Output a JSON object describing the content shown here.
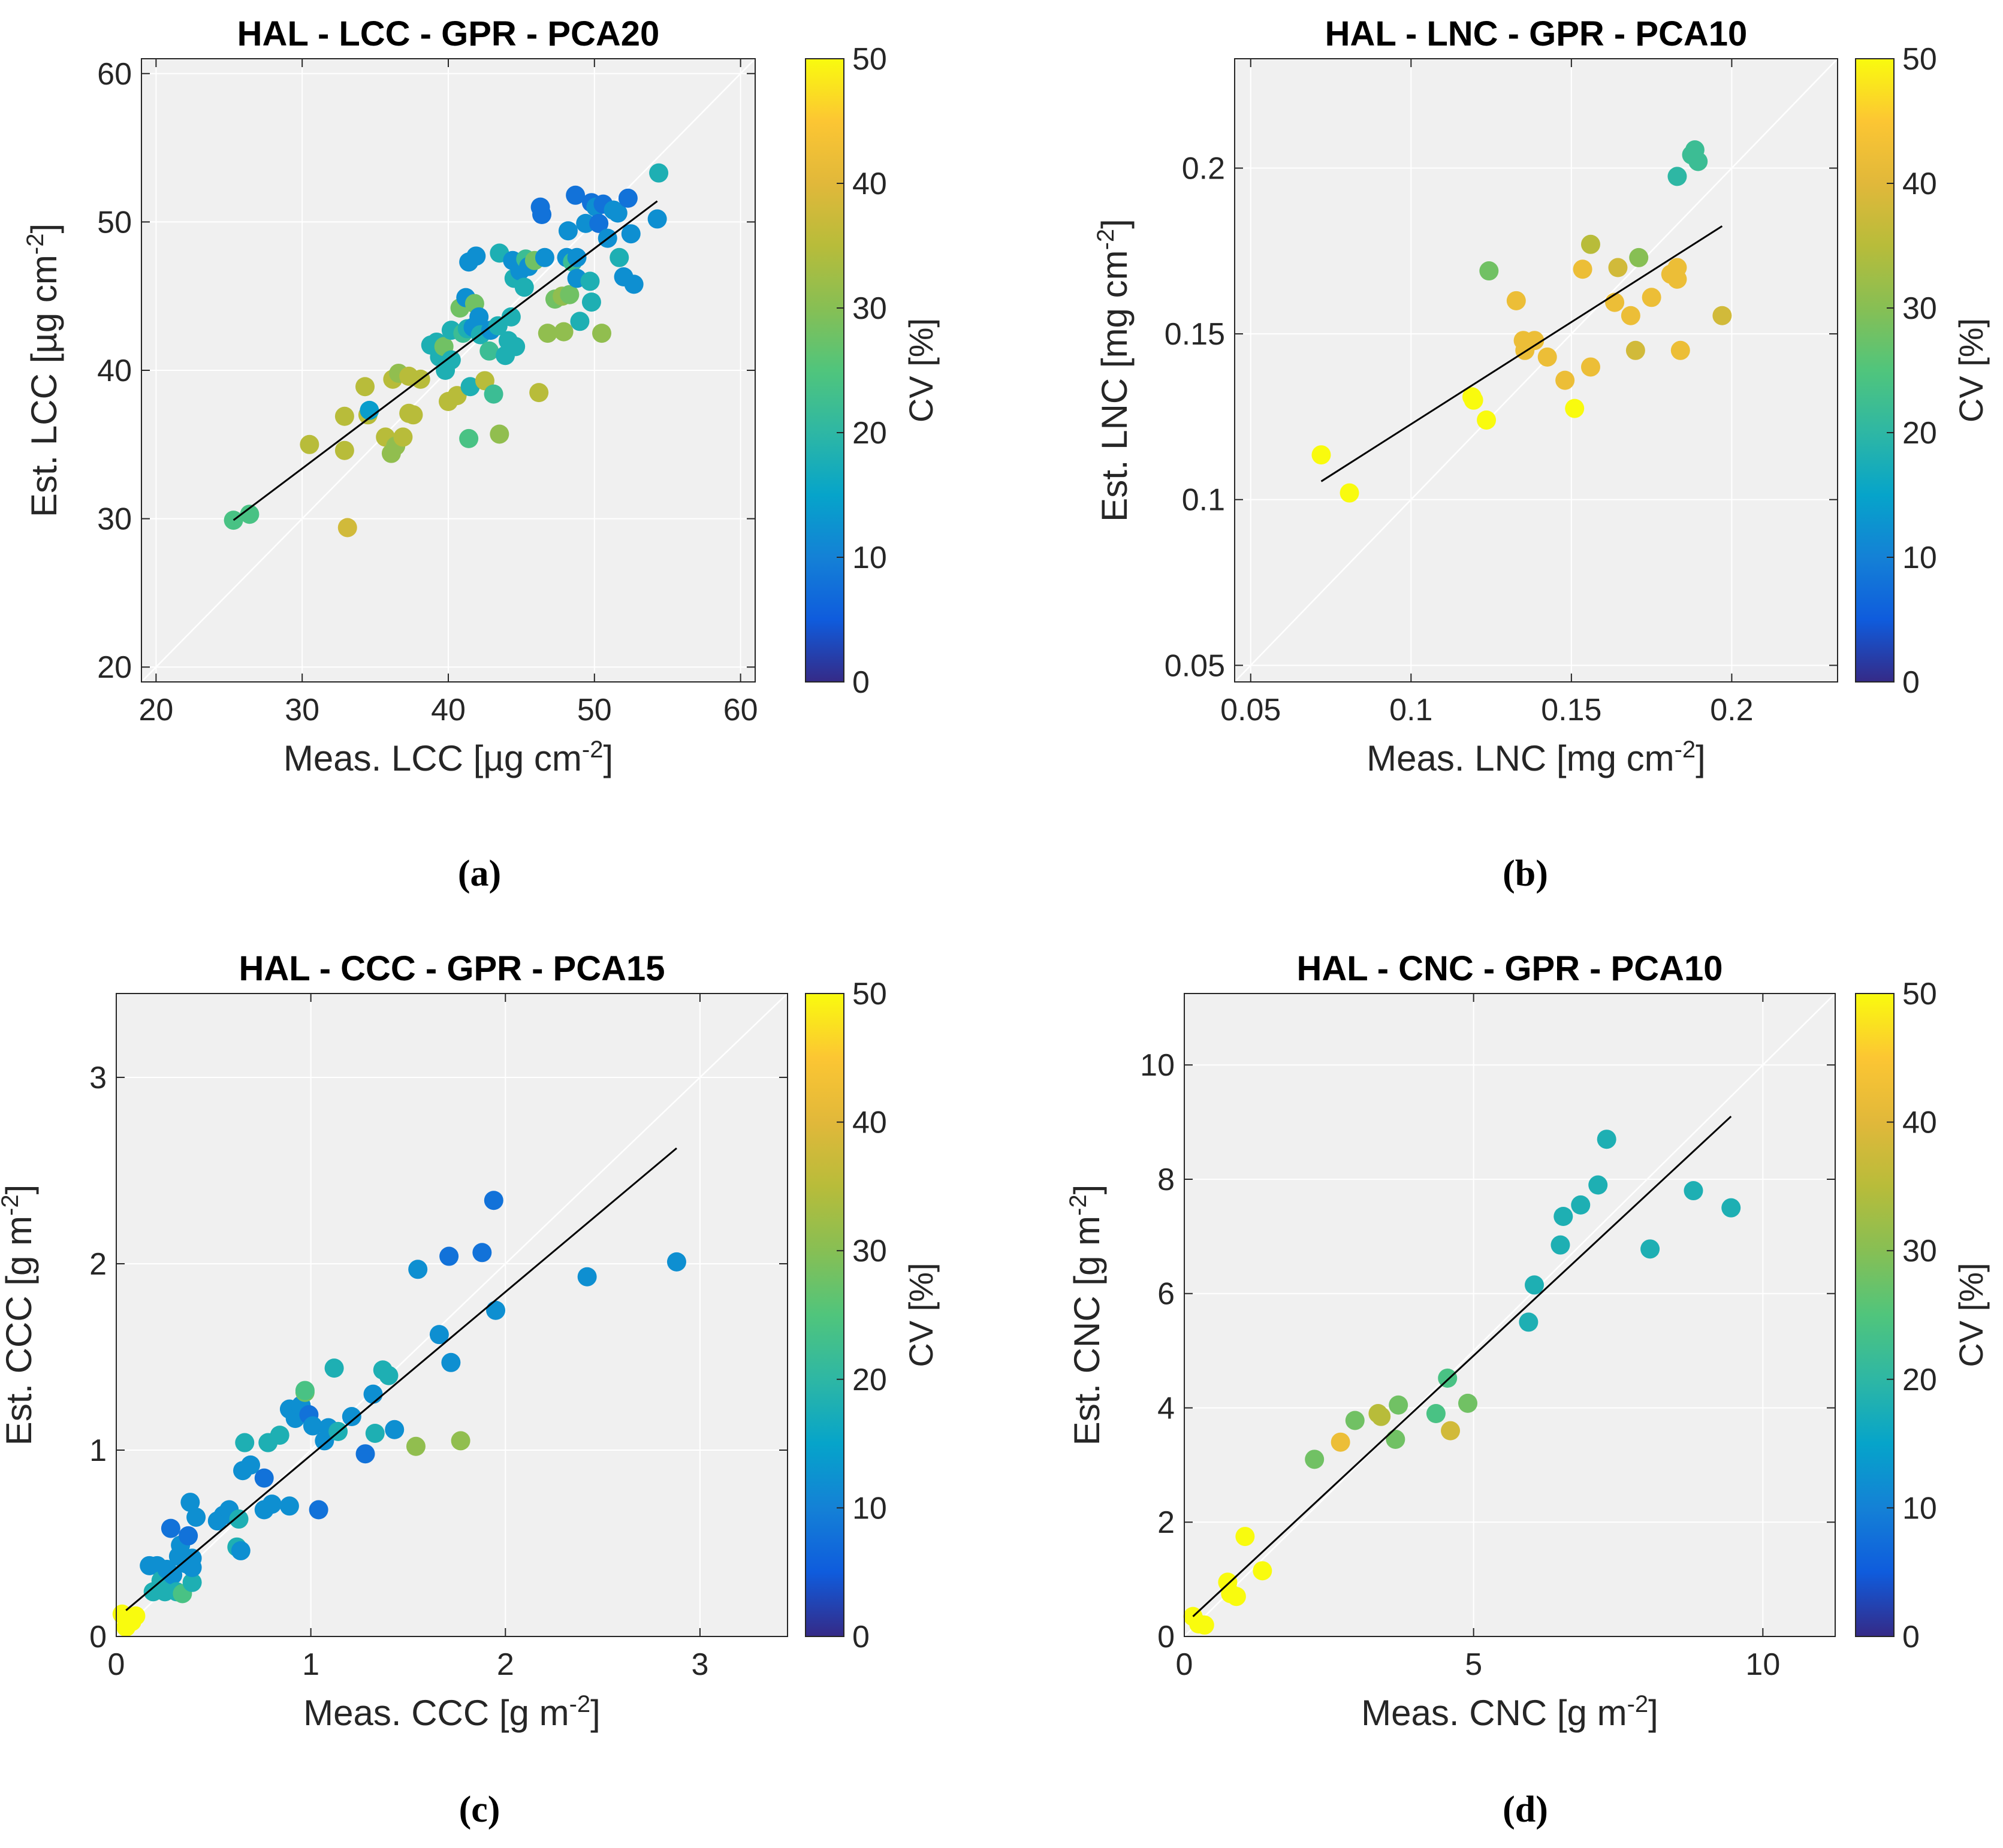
{
  "figure": {
    "captions": [
      "(a)",
      "(b)",
      "(c)",
      "(d)"
    ]
  },
  "colorbar": {
    "label": "CV [%]",
    "min": 0,
    "max": 50,
    "ticks": [
      0,
      10,
      20,
      30,
      40,
      50
    ]
  },
  "chart_data": [
    {
      "type": "scatter",
      "title": "HAL - LCC - GPR - PCA20",
      "xlabel": "Meas. LCC [µg cm",
      "xlabel_sup": "-2",
      "xlabel_end": "]",
      "ylabel": "Est. LCC [µg cm",
      "ylabel_sup": "-2",
      "ylabel_end": "]",
      "xlim": [
        19,
        61
      ],
      "ylim": [
        19,
        61
      ],
      "xticks": [
        20,
        30,
        40,
        50,
        60
      ],
      "yticks": [
        20,
        30,
        40,
        50,
        60
      ],
      "xtick_labels": [
        "20",
        "30",
        "40",
        "50",
        "60"
      ],
      "ytick_labels": [
        "20",
        "30",
        "40",
        "50",
        "60"
      ],
      "grid": true,
      "fit_line": [
        [
          25.3,
          29.9
        ],
        [
          54.3,
          51.4
        ]
      ],
      "points": [
        [
          25.3,
          29.9,
          24
        ],
        [
          26.4,
          30.3,
          24
        ],
        [
          30.5,
          35.0,
          35
        ],
        [
          32.9,
          34.6,
          35
        ],
        [
          32.9,
          36.9,
          35
        ],
        [
          33.1,
          29.4,
          38
        ],
        [
          34.3,
          38.9,
          35
        ],
        [
          34.5,
          37.0,
          35
        ],
        [
          34.6,
          37.3,
          14
        ],
        [
          35.7,
          35.5,
          35
        ],
        [
          36.1,
          34.4,
          31
        ],
        [
          36.2,
          39.4,
          35
        ],
        [
          36.4,
          34.9,
          31
        ],
        [
          36.6,
          39.8,
          31
        ],
        [
          36.9,
          35.5,
          35
        ],
        [
          37.3,
          39.6,
          35
        ],
        [
          37.3,
          37.1,
          35
        ],
        [
          37.6,
          37.0,
          35
        ],
        [
          38.1,
          39.4,
          35
        ],
        [
          38.8,
          41.7,
          18
        ],
        [
          39.2,
          41.9,
          18
        ],
        [
          39.4,
          40.9,
          18
        ],
        [
          39.7,
          41.6,
          28
        ],
        [
          39.8,
          40.0,
          18
        ],
        [
          40.0,
          37.9,
          35
        ],
        [
          40.2,
          42.7,
          18
        ],
        [
          40.2,
          40.7,
          18
        ],
        [
          40.6,
          38.3,
          35
        ],
        [
          40.8,
          44.2,
          28
        ],
        [
          41.0,
          42.5,
          22
        ],
        [
          41.2,
          44.9,
          12
        ],
        [
          41.3,
          42.8,
          18
        ],
        [
          41.4,
          47.3,
          12
        ],
        [
          41.4,
          35.4,
          24
        ],
        [
          41.5,
          38.9,
          18
        ],
        [
          41.7,
          42.9,
          12
        ],
        [
          41.8,
          44.5,
          28
        ],
        [
          41.9,
          47.7,
          12
        ],
        [
          42.1,
          43.6,
          12
        ],
        [
          42.2,
          42.4,
          18
        ],
        [
          42.5,
          39.3,
          35
        ],
        [
          42.8,
          41.3,
          22
        ],
        [
          42.9,
          42.7,
          12
        ],
        [
          43.1,
          38.4,
          22
        ],
        [
          43.4,
          43.0,
          18
        ],
        [
          43.5,
          35.7,
          31
        ],
        [
          43.5,
          47.9,
          18
        ],
        [
          43.9,
          41.0,
          18
        ],
        [
          44.1,
          42.0,
          18
        ],
        [
          44.3,
          43.6,
          18
        ],
        [
          44.4,
          47.4,
          12
        ],
        [
          44.5,
          46.2,
          18
        ],
        [
          44.6,
          41.6,
          18
        ],
        [
          44.9,
          46.7,
          12
        ],
        [
          45.2,
          45.6,
          18
        ],
        [
          45.3,
          47.5,
          22
        ],
        [
          45.5,
          47.0,
          12
        ],
        [
          45.9,
          47.4,
          28
        ],
        [
          46.2,
          38.5,
          35
        ],
        [
          46.3,
          51.0,
          8
        ],
        [
          46.4,
          50.5,
          8
        ],
        [
          46.6,
          47.6,
          12
        ],
        [
          46.8,
          42.5,
          31
        ],
        [
          47.3,
          44.8,
          28
        ],
        [
          47.8,
          45.0,
          31
        ],
        [
          47.9,
          42.6,
          31
        ],
        [
          48.1,
          47.6,
          12
        ],
        [
          48.2,
          49.4,
          12
        ],
        [
          48.3,
          45.1,
          28
        ],
        [
          48.5,
          47.3,
          22
        ],
        [
          48.7,
          51.8,
          8
        ],
        [
          48.8,
          46.2,
          12
        ],
        [
          48.8,
          47.6,
          12
        ],
        [
          49.0,
          43.3,
          18
        ],
        [
          49.4,
          49.9,
          12
        ],
        [
          49.7,
          46.0,
          18
        ],
        [
          49.8,
          44.6,
          18
        ],
        [
          49.8,
          51.3,
          8
        ],
        [
          50.1,
          51.0,
          12
        ],
        [
          50.3,
          49.9,
          8
        ],
        [
          50.5,
          42.5,
          31
        ],
        [
          50.6,
          51.2,
          8
        ],
        [
          50.9,
          48.9,
          12
        ],
        [
          51.3,
          50.8,
          12
        ],
        [
          51.6,
          50.6,
          12
        ],
        [
          51.7,
          47.6,
          18
        ],
        [
          52.0,
          46.3,
          12
        ],
        [
          52.3,
          51.6,
          8
        ],
        [
          52.5,
          49.2,
          12
        ],
        [
          52.7,
          45.8,
          12
        ],
        [
          54.3,
          50.2,
          12
        ],
        [
          54.4,
          53.3,
          18
        ]
      ]
    },
    {
      "type": "scatter",
      "title": "HAL - LNC - GPR - PCA10",
      "xlabel": "Meas. LNC [mg cm",
      "xlabel_sup": "-2",
      "xlabel_end": "]",
      "ylabel": "Est. LNC [mg cm",
      "ylabel_sup": "-2",
      "ylabel_end": "]",
      "xlim": [
        0.045,
        0.233
      ],
      "ylim": [
        0.045,
        0.233
      ],
      "xticks": [
        0.05,
        0.1,
        0.15,
        0.2
      ],
      "yticks": [
        0.05,
        0.1,
        0.15,
        0.2
      ],
      "xtick_labels": [
        "0.05",
        "0.1",
        "0.15",
        "0.2"
      ],
      "ytick_labels": [
        "0.05",
        "0.1",
        "0.15",
        "0.2"
      ],
      "grid": true,
      "fit_line": [
        [
          0.072,
          0.1055
        ],
        [
          0.197,
          0.1825
        ]
      ],
      "points": [
        [
          0.072,
          0.1135,
          50
        ],
        [
          0.0808,
          0.102,
          50
        ],
        [
          0.119,
          0.131,
          50
        ],
        [
          0.1195,
          0.13,
          50
        ],
        [
          0.1235,
          0.124,
          50
        ],
        [
          0.1243,
          0.169,
          28
        ],
        [
          0.1328,
          0.16,
          42
        ],
        [
          0.135,
          0.148,
          42
        ],
        [
          0.1355,
          0.145,
          42
        ],
        [
          0.1385,
          0.148,
          42
        ],
        [
          0.1425,
          0.143,
          42
        ],
        [
          0.148,
          0.136,
          42
        ],
        [
          0.151,
          0.1275,
          50
        ],
        [
          0.1535,
          0.1695,
          42
        ],
        [
          0.156,
          0.14,
          42
        ],
        [
          0.156,
          0.177,
          35
        ],
        [
          0.1635,
          0.1595,
          42
        ],
        [
          0.1645,
          0.17,
          38
        ],
        [
          0.1685,
          0.1555,
          42
        ],
        [
          0.17,
          0.145,
          38
        ],
        [
          0.171,
          0.173,
          30
        ],
        [
          0.175,
          0.161,
          42
        ],
        [
          0.181,
          0.168,
          42
        ],
        [
          0.183,
          0.17,
          42
        ],
        [
          0.183,
          0.1665,
          42
        ],
        [
          0.184,
          0.145,
          42
        ],
        [
          0.183,
          0.1975,
          20
        ],
        [
          0.1875,
          0.204,
          22
        ],
        [
          0.1885,
          0.2055,
          22
        ],
        [
          0.1895,
          0.202,
          22
        ],
        [
          0.197,
          0.1555,
          38
        ]
      ]
    },
    {
      "type": "scatter",
      "title": "HAL - CCC - GPR - PCA15",
      "xlabel": "Meas. CCC [g m",
      "xlabel_sup": "-2",
      "xlabel_end": "]",
      "ylabel": "Est. CCC [g m",
      "ylabel_sup": "-2",
      "ylabel_end": "]",
      "xlim": [
        0,
        3.45
      ],
      "ylim": [
        0,
        3.45
      ],
      "xticks": [
        0,
        1,
        2,
        3
      ],
      "yticks": [
        0,
        1,
        2,
        3
      ],
      "xtick_labels": [
        "0",
        "1",
        "2",
        "3"
      ],
      "ytick_labels": [
        "0",
        "1",
        "2",
        "3"
      ],
      "grid": true,
      "fit_line": [
        [
          0.05,
          0.14
        ],
        [
          2.88,
          2.62
        ]
      ],
      "points": [
        [
          0.03,
          0.12,
          50
        ],
        [
          0.05,
          0.05,
          50
        ],
        [
          0.06,
          0.1,
          50
        ],
        [
          0.08,
          0.08,
          50
        ],
        [
          0.1,
          0.11,
          50
        ],
        [
          0.17,
          0.38,
          12
        ],
        [
          0.19,
          0.24,
          18
        ],
        [
          0.21,
          0.38,
          12
        ],
        [
          0.23,
          0.3,
          18
        ],
        [
          0.25,
          0.24,
          18
        ],
        [
          0.26,
          0.36,
          12
        ],
        [
          0.28,
          0.58,
          8
        ],
        [
          0.29,
          0.33,
          12
        ],
        [
          0.31,
          0.24,
          18
        ],
        [
          0.32,
          0.43,
          12
        ],
        [
          0.33,
          0.49,
          12
        ],
        [
          0.34,
          0.23,
          24
        ],
        [
          0.36,
          0.39,
          12
        ],
        [
          0.37,
          0.54,
          8
        ],
        [
          0.38,
          0.72,
          12
        ],
        [
          0.39,
          0.29,
          18
        ],
        [
          0.39,
          0.37,
          12
        ],
        [
          0.39,
          0.42,
          12
        ],
        [
          0.41,
          0.64,
          12
        ],
        [
          0.52,
          0.62,
          12
        ],
        [
          0.55,
          0.65,
          12
        ],
        [
          0.58,
          0.68,
          12
        ],
        [
          0.62,
          0.48,
          18
        ],
        [
          0.63,
          0.63,
          18
        ],
        [
          0.64,
          0.46,
          12
        ],
        [
          0.65,
          0.89,
          12
        ],
        [
          0.66,
          1.04,
          18
        ],
        [
          0.69,
          0.92,
          12
        ],
        [
          0.76,
          0.85,
          8
        ],
        [
          0.76,
          0.68,
          12
        ],
        [
          0.78,
          1.04,
          18
        ],
        [
          0.8,
          0.71,
          12
        ],
        [
          0.84,
          1.08,
          18
        ],
        [
          0.89,
          0.7,
          12
        ],
        [
          0.89,
          1.22,
          12
        ],
        [
          0.92,
          1.17,
          12
        ],
        [
          0.95,
          1.24,
          12
        ],
        [
          0.97,
          1.31,
          28
        ],
        [
          0.97,
          1.32,
          24
        ],
        [
          0.99,
          1.19,
          8
        ],
        [
          1.01,
          1.13,
          12
        ],
        [
          1.04,
          0.68,
          8
        ],
        [
          1.07,
          1.05,
          12
        ],
        [
          1.09,
          1.12,
          12
        ],
        [
          1.12,
          1.44,
          18
        ],
        [
          1.14,
          1.1,
          18
        ],
        [
          1.21,
          1.18,
          12
        ],
        [
          1.28,
          0.98,
          8
        ],
        [
          1.32,
          1.3,
          12
        ],
        [
          1.33,
          1.09,
          18
        ],
        [
          1.37,
          1.43,
          18
        ],
        [
          1.4,
          1.4,
          18
        ],
        [
          1.43,
          1.11,
          12
        ],
        [
          1.54,
          1.02,
          31
        ],
        [
          1.55,
          1.97,
          12
        ],
        [
          1.66,
          1.62,
          12
        ],
        [
          1.71,
          2.04,
          8
        ],
        [
          1.72,
          1.47,
          12
        ],
        [
          1.77,
          1.05,
          31
        ],
        [
          1.88,
          2.06,
          8
        ],
        [
          1.94,
          2.34,
          8
        ],
        [
          1.95,
          1.75,
          12
        ],
        [
          2.42,
          1.93,
          12
        ],
        [
          2.88,
          2.01,
          12
        ]
      ]
    },
    {
      "type": "scatter",
      "title": "HAL - CNC - GPR - PCA10",
      "xlabel": "Meas. CNC [g m",
      "xlabel_sup": "-2",
      "xlabel_end": "]",
      "ylabel": "Est. CNC [g m",
      "ylabel_sup": "-2",
      "ylabel_end": "]",
      "xlim": [
        0,
        11.25
      ],
      "ylim": [
        0,
        11.25
      ],
      "xticks": [
        0,
        5,
        10
      ],
      "yticks": [
        0,
        2,
        4,
        6,
        8,
        10
      ],
      "xtick_labels": [
        "0",
        "5",
        "10"
      ],
      "ytick_labels": [
        "0",
        "2",
        "4",
        "6",
        "8",
        "10"
      ],
      "grid": true,
      "fit_line": [
        [
          0.15,
          0.35
        ],
        [
          9.45,
          9.1
        ]
      ],
      "points": [
        [
          0.15,
          0.35,
          50
        ],
        [
          0.25,
          0.22,
          50
        ],
        [
          0.35,
          0.2,
          50
        ],
        [
          0.75,
          0.95,
          50
        ],
        [
          0.8,
          0.75,
          50
        ],
        [
          0.9,
          0.7,
          50
        ],
        [
          1.05,
          1.75,
          50
        ],
        [
          1.35,
          1.15,
          50
        ],
        [
          2.25,
          3.1,
          28
        ],
        [
          2.7,
          3.4,
          42
        ],
        [
          2.95,
          3.78,
          28
        ],
        [
          3.35,
          3.9,
          35
        ],
        [
          3.4,
          3.85,
          35
        ],
        [
          3.65,
          3.45,
          28
        ],
        [
          3.7,
          4.05,
          28
        ],
        [
          4.35,
          3.9,
          24
        ],
        [
          4.55,
          4.52,
          24
        ],
        [
          4.6,
          3.6,
          38
        ],
        [
          4.9,
          4.08,
          28
        ],
        [
          5.95,
          5.5,
          18
        ],
        [
          6.05,
          6.15,
          18
        ],
        [
          6.5,
          6.85,
          18
        ],
        [
          6.55,
          7.35,
          18
        ],
        [
          6.85,
          7.55,
          18
        ],
        [
          7.15,
          7.9,
          18
        ],
        [
          7.3,
          8.7,
          18
        ],
        [
          8.05,
          6.78,
          18
        ],
        [
          8.8,
          7.8,
          18
        ],
        [
          9.45,
          7.5,
          18
        ]
      ]
    }
  ]
}
